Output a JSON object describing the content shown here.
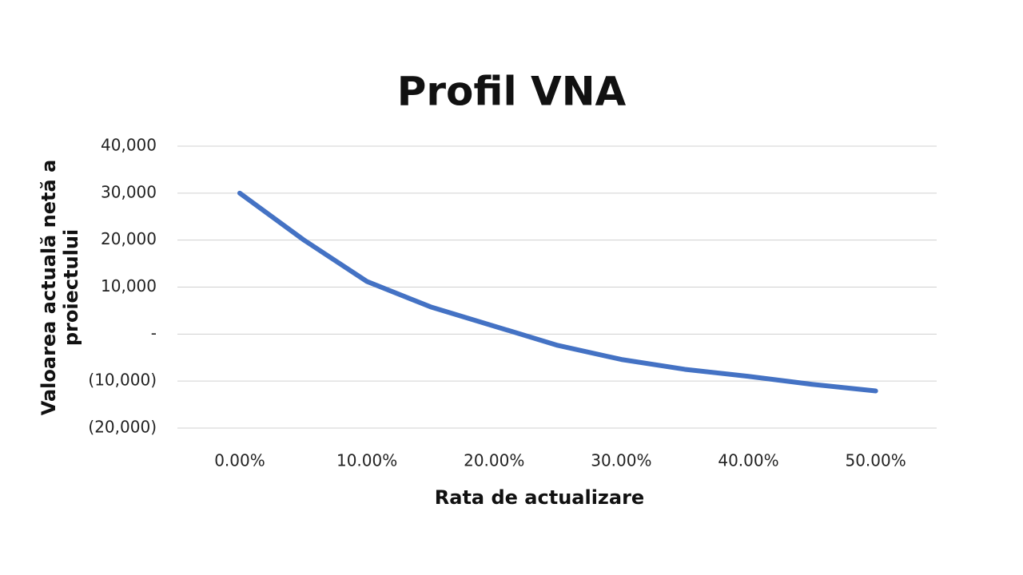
{
  "chart_data": {
    "type": "line",
    "title": "Profil VNA",
    "x_label": "Rata de actualizare",
    "y_label": "Valoarea actuală netă a proiectului",
    "x": [
      0,
      5,
      10,
      15,
      20,
      25,
      30,
      35,
      40,
      45,
      50
    ],
    "series": [
      {
        "name": "VNA",
        "color": "#4472c4",
        "values": [
          30000,
          20100,
          11200,
          5800,
          1700,
          -2400,
          -5400,
          -7500,
          -9000,
          -10700,
          -12100
        ]
      }
    ],
    "xlim": [
      -4.9,
      54.8
    ],
    "xticks": [
      {
        "value": 0,
        "label": "0.00%"
      },
      {
        "value": 10,
        "label": "10.00%"
      },
      {
        "value": 20,
        "label": "20.00%"
      },
      {
        "value": 30,
        "label": "30.00%"
      },
      {
        "value": 40,
        "label": "40.00%"
      },
      {
        "value": 50,
        "label": "50.00%"
      }
    ],
    "ylim": [
      -20000,
      40000
    ],
    "yticks": [
      {
        "value": -20000,
        "label": "(20,000)"
      },
      {
        "value": -10000,
        "label": "(10,000)"
      },
      {
        "value": 0,
        "label": "-"
      },
      {
        "value": 10000,
        "label": "10,000"
      },
      {
        "value": 20000,
        "label": "20,000"
      },
      {
        "value": 30000,
        "label": "30,000"
      },
      {
        "value": 40000,
        "label": "40,000"
      }
    ],
    "grid": true
  }
}
